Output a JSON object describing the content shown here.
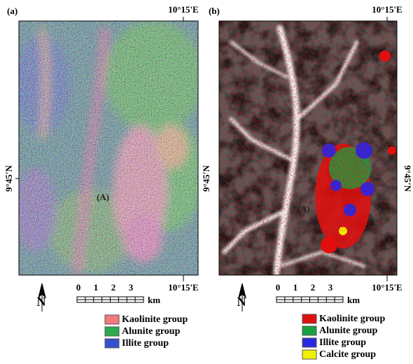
{
  "panels": [
    {
      "label": "(a)",
      "top_longitude": "10°15'E",
      "latitude": "9°45'N",
      "site_label": "(A)",
      "scale": {
        "ticks": [
          "0",
          "1",
          "2",
          "3"
        ],
        "unit": "km"
      },
      "bottom_longitude": "10°15'E",
      "north": "N",
      "legend": [
        {
          "name": "Kaolinite group",
          "color": "#f27a7a"
        },
        {
          "name": "Alunite group",
          "color": "#2eaa4a"
        },
        {
          "name": "Illite group",
          "color": "#3a4fd0"
        }
      ]
    },
    {
      "label": "(b)",
      "top_longitude": "10°15'E",
      "latitude": "9°45'N",
      "site_label": "(A)",
      "scale": {
        "ticks": [
          "0",
          "1",
          "2",
          "3"
        ],
        "unit": "km"
      },
      "bottom_longitude": "10°15'E",
      "north": "N",
      "legend": [
        {
          "name": "Kaolinite group",
          "color": "#e01010"
        },
        {
          "name": "Alunite group",
          "color": "#18a040"
        },
        {
          "name": "Illite group",
          "color": "#2828e0"
        },
        {
          "name": "Calcite group",
          "color": "#f0f000"
        }
      ]
    }
  ]
}
